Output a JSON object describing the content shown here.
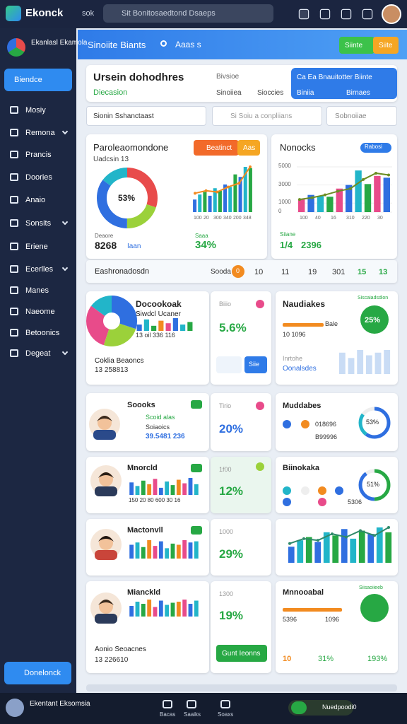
{
  "topbar": {
    "brand": "Ekonck",
    "tag": "sok",
    "search": "Sit Bonitosaedtond Dsaeps"
  },
  "sidebar": {
    "brand": "Ekanlasl Ekamola",
    "active": "Biendce",
    "items": [
      "Mosiy",
      "Remona",
      "Prancis",
      "Doories",
      "Anaio",
      "Sonsits",
      "Eriene",
      "Ecerlles",
      "Manes",
      "Naeome",
      "Betoonics",
      "Degeat"
    ],
    "button": "Donelonck"
  },
  "banner": {
    "title": "Sinoiite Biants",
    "search": "Aaas s",
    "btn_green": "Siinte",
    "btn_orange": "Siite"
  },
  "header": {
    "title": "Ursein dohodhres",
    "subtitle": "Diecasion",
    "col1": [
      "Bivsioe",
      "Sinoiiea"
    ],
    "col2": "Sioccies",
    "panel": {
      "title": "Ca Ea Bnauitotter Biinte",
      "left": "Biniia",
      "right": "Birnaes"
    }
  },
  "filters": {
    "select1": "Sionin Sshanctaast",
    "search": "Si Soiu a conpliians",
    "select2": "Sobnoiiae"
  },
  "overview": {
    "title": "Paroleaomondone",
    "sub": "Uadcsin 13",
    "btn": "Beatinct",
    "btn2": "Aas",
    "donut": "53%",
    "xlabels": [
      "100",
      "20",
      "300",
      "340",
      "200",
      "348"
    ],
    "left_label": "Deaore",
    "left_value": "8268",
    "left_unit": "Iaan",
    "right_label": "Saaa",
    "right_value": "34%",
    "bars": [
      20,
      28,
      32,
      26,
      38,
      34,
      44,
      40,
      60,
      56,
      72,
      70
    ],
    "line": [
      30,
      34,
      32,
      40,
      46,
      72
    ]
  },
  "notes": {
    "title": "Nonocks",
    "pill": "Rabosi",
    "yticks": [
      5000,
      3000,
      1000,
      0
    ],
    "xlabels": [
      "100",
      "40",
      "16",
      "310",
      "220",
      "30"
    ],
    "label": "Siiane",
    "value_a": "1/4",
    "value_b": "2396",
    "bars": [
      1400,
      1900,
      1800,
      1700,
      2600,
      3000,
      4600,
      3100,
      4000,
      3800
    ],
    "line": [
      1400,
      1600,
      1900,
      2300,
      2600,
      3600,
      4300,
      4100
    ]
  },
  "footer_row": {
    "label": "Eashronadosdn",
    "sort": "Sooda",
    "badge": "0",
    "cols": [
      "10",
      "11",
      "19",
      "301",
      "15",
      "13"
    ]
  },
  "card_a": {
    "title": "Docookoak",
    "sub": "Siwdcl Ucaner",
    "nums": "13 oil 336 116",
    "foot_label": "Coklia Beaoncs",
    "foot_value": "13 258813",
    "bars": [
      5,
      9,
      4,
      8,
      6,
      10,
      5,
      7
    ]
  },
  "kpi_a": {
    "label": "Biiio",
    "value": "5.6%",
    "btn": "Siie"
  },
  "card_b": {
    "title": "Naudiakes",
    "tag": "Siscaiadsdion",
    "circle": "25%",
    "bar_label": "Bale",
    "nums": "10 1096",
    "foot_label": "Inrtohe",
    "foot_value": "Oonalsdes",
    "bars": [
      8,
      6,
      9,
      7,
      8,
      9
    ]
  },
  "rows": [
    {
      "name": "Soooks",
      "line1": "Scoid alas",
      "line2": "Soiaoics",
      "nums": "39.5481 236",
      "kpi_label": "Tirio",
      "kpi": "20%",
      "right_title": "Muddabes",
      "ring": "53%",
      "right_1": "018696",
      "right_2": "B99996"
    },
    {
      "name": "Mnorcld",
      "nums": "150 20 80 600 30 16",
      "kpi_label": "1f00",
      "kpi": "12%",
      "right_title": "Biinokaka",
      "ring": "51%",
      "right_1": "5306",
      "bars": [
        14,
        10,
        16,
        12,
        18,
        8,
        15,
        11,
        17,
        13,
        19,
        12
      ]
    },
    {
      "name": "Mactonvll",
      "kpi_label": "1000",
      "kpi": "29%",
      "bars": [
        12,
        14,
        10,
        16,
        11,
        15,
        9,
        13,
        12,
        16,
        14,
        15
      ],
      "chart_bars": [
        20,
        28,
        32,
        26,
        38,
        34,
        42,
        30,
        40,
        36,
        44,
        38
      ],
      "chart_line": [
        24,
        30,
        28,
        36,
        32,
        40,
        34,
        44
      ]
    },
    {
      "name": "Mianckld",
      "foot_label": "Aonio Seoacnes",
      "foot_value": "13 226610",
      "kpi_label": "1300",
      "kpi": "19%",
      "btn": "Gunt Ieonns",
      "right_title": "Mnnooabal",
      "tag": "Siisaoiieeb",
      "nums_a": "5396",
      "nums_b": "1096",
      "s1": "10",
      "s2": "31%",
      "s3": "193%",
      "bars": [
        10,
        14,
        12,
        16,
        9,
        15,
        11,
        13,
        14,
        16,
        12,
        15
      ]
    }
  ],
  "bottombar": {
    "brand": "Ekentant Eksomsia",
    "tabs": [
      "Bacas",
      "Saaiks",
      "Soaxs"
    ],
    "toggle": "Nuedpoodi0"
  }
}
